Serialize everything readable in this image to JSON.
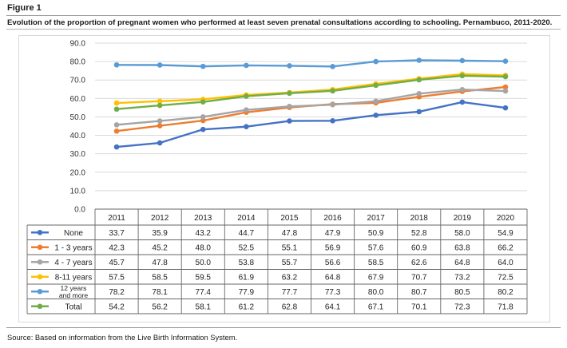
{
  "figure_label": "Figure 1",
  "caption": "Evolution of the proportion of pregnant women who performed at least seven prenatal consultations according to schooling. Pernambuco, 2011-2020.",
  "source": "Source: Based on information from the Live Birth Information System.",
  "chart_data": {
    "type": "line",
    "title": "",
    "xlabel": "",
    "ylabel": "",
    "categories": [
      "2011",
      "2012",
      "2013",
      "2014",
      "2015",
      "2016",
      "2017",
      "2018",
      "2019",
      "2020"
    ],
    "ylim": [
      0,
      90
    ],
    "yticks": [
      "0.0",
      "10.0",
      "20.0",
      "30.0",
      "40.0",
      "50.0",
      "60.0",
      "70.0",
      "80.0",
      "90.0"
    ],
    "grid": true,
    "legend": "data table below the plot",
    "series": [
      {
        "name": "None",
        "color": "#4472c4",
        "values": [
          33.7,
          35.9,
          43.2,
          44.7,
          47.8,
          47.9,
          50.9,
          52.8,
          58.0,
          54.9
        ],
        "labels": [
          "33.7",
          "35.9",
          "43.2",
          "44.7",
          "47.8",
          "47.9",
          "50.9",
          "52.8",
          "58.0",
          "54.9"
        ]
      },
      {
        "name": "1 - 3 years",
        "color": "#ed7d31",
        "values": [
          42.3,
          45.2,
          48.0,
          52.5,
          55.1,
          56.9,
          57.6,
          60.9,
          63.8,
          66.2
        ],
        "labels": [
          "42.3",
          "45.2",
          "48.0",
          "52.5",
          "55.1",
          "56.9",
          "57.6",
          "60.9",
          "63.8",
          "66.2"
        ]
      },
      {
        "name": "4 - 7 years",
        "color": "#a5a5a5",
        "values": [
          45.7,
          47.8,
          50.0,
          53.8,
          55.7,
          56.6,
          58.5,
          62.6,
          64.8,
          64.0
        ],
        "labels": [
          "45.7",
          "47.8",
          "50.0",
          "53.8",
          "55.7",
          "56.6",
          "58.5",
          "62.6",
          "64.8",
          "64.0"
        ]
      },
      {
        "name": "8-11 years",
        "color": "#ffc000",
        "values": [
          57.5,
          58.5,
          59.5,
          61.9,
          63.2,
          64.8,
          67.9,
          70.7,
          73.2,
          72.5
        ],
        "labels": [
          "57.5",
          "58.5",
          "59.5",
          "61.9",
          "63.2",
          "64.8",
          "67.9",
          "70.7",
          "73.2",
          "72.5"
        ]
      },
      {
        "name": [
          "12 years",
          "and more"
        ],
        "color": "#5b9bd5",
        "values": [
          78.2,
          78.1,
          77.4,
          77.9,
          77.7,
          77.3,
          80.0,
          80.7,
          80.5,
          80.2
        ],
        "labels": [
          "78.2",
          "78.1",
          "77.4",
          "77.9",
          "77.7",
          "77.3",
          "80.0",
          "80.7",
          "80.5",
          "80.2"
        ]
      },
      {
        "name": "Total",
        "color": "#70ad47",
        "values": [
          54.2,
          56.2,
          58.1,
          61.2,
          62.8,
          64.1,
          67.1,
          70.1,
          72.3,
          71.8
        ],
        "labels": [
          "54.2",
          "56.2",
          "58.1",
          "61.2",
          "62.8",
          "64.1",
          "67.1",
          "70.1",
          "72.3",
          "71.8"
        ]
      }
    ]
  }
}
